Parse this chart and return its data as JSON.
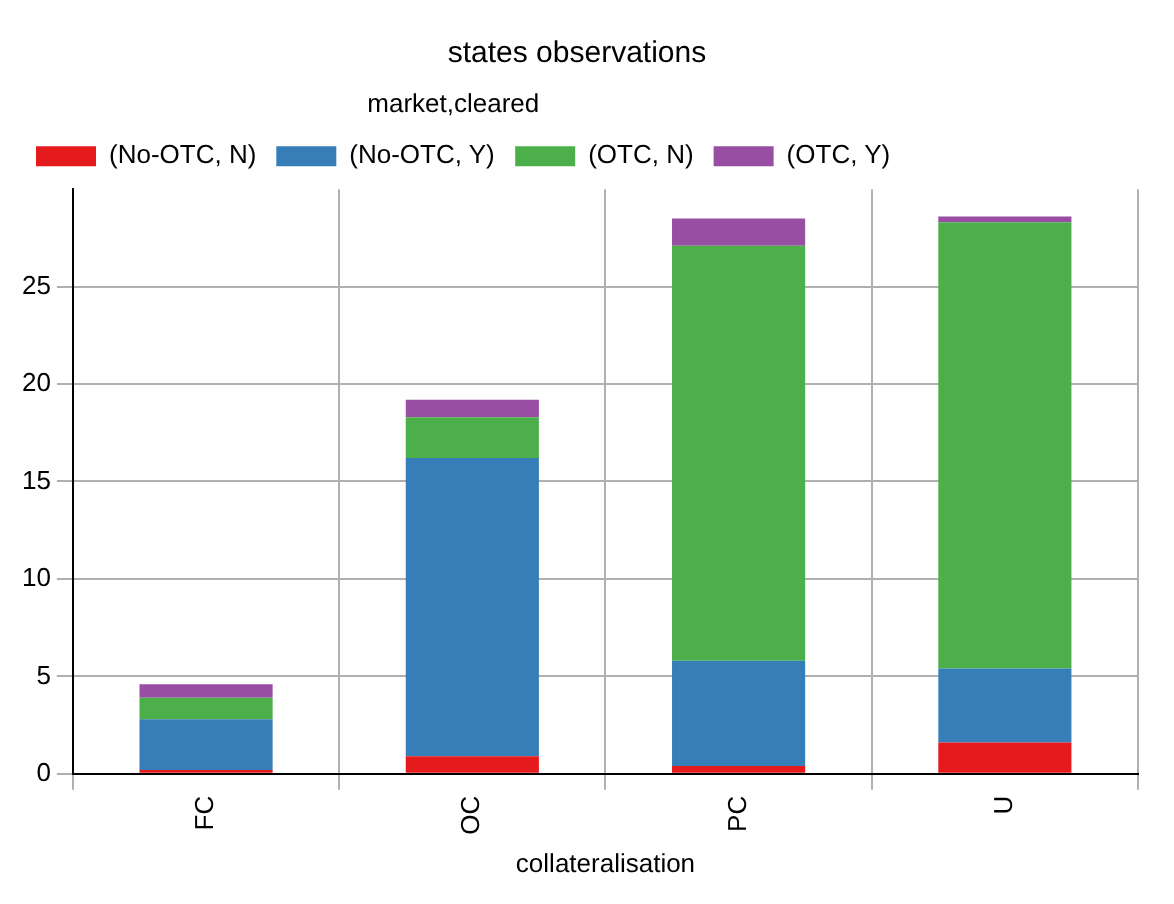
{
  "chart_data": {
    "type": "bar",
    "title": "states observations",
    "xlabel": "collateralisation",
    "legend_title": "market,cleared",
    "categories": [
      "FC",
      "OC",
      "PC",
      "U"
    ],
    "stacked": true,
    "series": [
      {
        "name": "(No-OTC, N)",
        "color": "#e41a1c",
        "values": [
          0.2,
          0.9,
          0.4,
          1.6
        ]
      },
      {
        "name": "(No-OTC, Y)",
        "color": "#377eb8",
        "values": [
          2.6,
          15.3,
          5.4,
          3.8
        ]
      },
      {
        "name": "(OTC, N)",
        "color": "#4daf4a",
        "values": [
          1.1,
          2.1,
          21.3,
          22.9
        ]
      },
      {
        "name": "(OTC, Y)",
        "color": "#984ea3",
        "values": [
          0.7,
          0.9,
          1.4,
          0.3
        ]
      }
    ],
    "ylim": [
      0,
      30
    ],
    "yticks": [
      0,
      5,
      10,
      15,
      20,
      25
    ],
    "grid": true,
    "legend": "top left"
  }
}
